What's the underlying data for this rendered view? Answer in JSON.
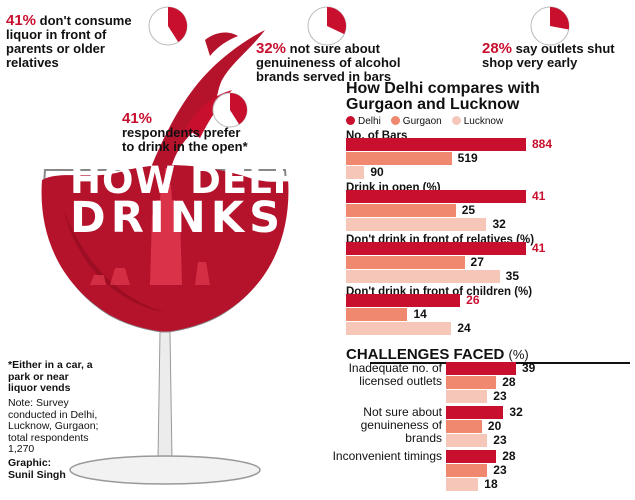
{
  "colors": {
    "delhi": "#c8102e",
    "gurgaon": "#f0876f",
    "lucknow": "#f6c7b8",
    "wine": "#b5122b"
  },
  "stats": [
    {
      "pct": "41%",
      "text": "don't consume liquor in front of parents or older relatives",
      "share": 0.41
    },
    {
      "pct": "32%",
      "text": "not sure about genuineness of alcohol brands served in bars",
      "share": 0.32
    },
    {
      "pct": "28%",
      "text": "say outlets shut shop very early",
      "share": 0.28
    },
    {
      "pct": "41%",
      "text": "respondents prefer to drink in the open*",
      "share": 0.41
    }
  ],
  "title_line1": "HOW DELHI",
  "title_line2": "DRINKS",
  "compare_title_1": "How Delhi compares with",
  "compare_title_2": "Gurgaon and Lucknow",
  "legend": [
    "Delhi",
    "Gurgaon",
    "Lucknow"
  ],
  "challenges_title": "CHALLENGES FACED",
  "challenges_unit": "(%)",
  "footnote": "*Either in a car, a park or near liquor vends",
  "note": "Note: Survey conducted in Delhi, Lucknow, Gurgaon; total respondents 1,270",
  "credit_label": "Graphic:",
  "credit_name": "Sunil Singh",
  "chart_data": [
    {
      "type": "bar",
      "title": "How Delhi compares with Gurgaon and Lucknow",
      "categories": [
        "No. of Bars",
        "Drink in open (%)",
        "Don't drink in front of relatives (%)",
        "Don't drink in front of children (%)"
      ],
      "series": [
        {
          "name": "Delhi",
          "values": [
            884,
            41,
            41,
            26
          ]
        },
        {
          "name": "Gurgaon",
          "values": [
            519,
            25,
            27,
            14
          ]
        },
        {
          "name": "Lucknow",
          "values": [
            90,
            32,
            35,
            24
          ]
        }
      ]
    },
    {
      "type": "bar",
      "title": "CHALLENGES FACED (%)",
      "categories": [
        "Inadequate no. of licensed outlets",
        "Not sure about genuineness of brands",
        "Inconvenient timings"
      ],
      "series": [
        {
          "values": [
            39,
            32,
            28
          ]
        },
        {
          "values": [
            28,
            20,
            23
          ]
        },
        {
          "values": [
            23,
            23,
            18
          ]
        }
      ]
    }
  ]
}
